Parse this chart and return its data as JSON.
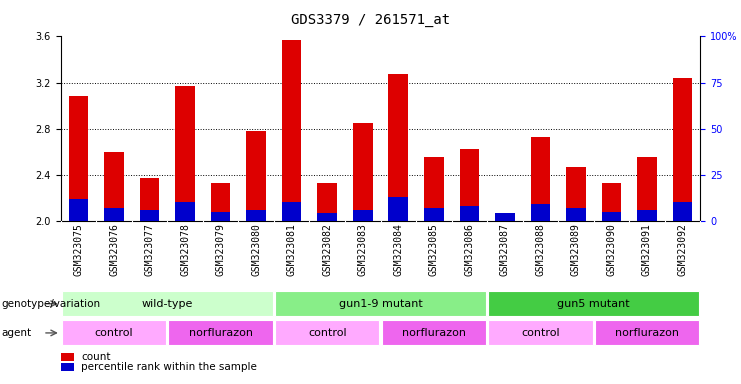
{
  "title": "GDS3379 / 261571_at",
  "samples": [
    "GSM323075",
    "GSM323076",
    "GSM323077",
    "GSM323078",
    "GSM323079",
    "GSM323080",
    "GSM323081",
    "GSM323082",
    "GSM323083",
    "GSM323084",
    "GSM323085",
    "GSM323086",
    "GSM323087",
    "GSM323088",
    "GSM323089",
    "GSM323090",
    "GSM323091",
    "GSM323092"
  ],
  "count_values": [
    3.08,
    2.6,
    2.37,
    3.17,
    2.33,
    2.78,
    3.57,
    2.33,
    2.85,
    3.27,
    2.55,
    2.62,
    2.07,
    2.73,
    2.47,
    2.33,
    2.55,
    3.24
  ],
  "percentile_values": [
    12,
    7,
    6,
    10,
    5,
    6,
    10,
    4,
    6,
    13,
    7,
    8,
    4,
    9,
    7,
    5,
    6,
    10
  ],
  "ylim_left": [
    2.0,
    3.6
  ],
  "ylim_right": [
    0,
    100
  ],
  "yticks_left": [
    2.0,
    2.4,
    2.8,
    3.2,
    3.6
  ],
  "yticks_right": [
    0,
    25,
    50,
    75,
    100
  ],
  "bar_color_red": "#dd0000",
  "bar_color_blue": "#0000cc",
  "bar_width": 0.55,
  "genotype_groups": [
    {
      "label": "wild-type",
      "start": 0,
      "end": 6,
      "color": "#ccffcc"
    },
    {
      "label": "gun1-9 mutant",
      "start": 6,
      "end": 12,
      "color": "#88ee88"
    },
    {
      "label": "gun5 mutant",
      "start": 12,
      "end": 18,
      "color": "#44cc44"
    }
  ],
  "agent_groups": [
    {
      "label": "control",
      "start": 0,
      "end": 3,
      "color": "#ffaaff"
    },
    {
      "label": "norflurazon",
      "start": 3,
      "end": 6,
      "color": "#ee66ee"
    },
    {
      "label": "control",
      "start": 6,
      "end": 9,
      "color": "#ffaaff"
    },
    {
      "label": "norflurazon",
      "start": 9,
      "end": 12,
      "color": "#ee66ee"
    },
    {
      "label": "control",
      "start": 12,
      "end": 15,
      "color": "#ffaaff"
    },
    {
      "label": "norflurazon",
      "start": 15,
      "end": 18,
      "color": "#ee66ee"
    }
  ],
  "genotype_label": "genotype/variation",
  "agent_label": "agent",
  "legend_count": "count",
  "legend_percentile": "percentile rank within the sample",
  "right_axis_top_label": "100%",
  "tick_fontsize": 7,
  "annot_fontsize": 8,
  "bg_color": "#cccccc"
}
